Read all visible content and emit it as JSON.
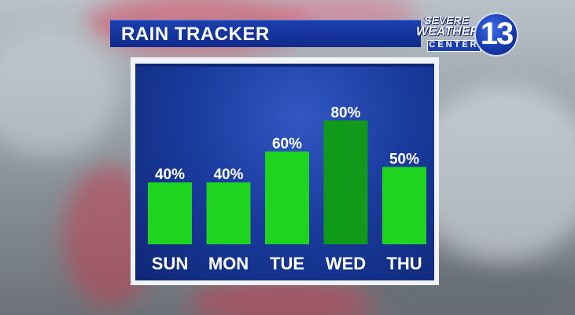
{
  "header": {
    "title": "RAIN TRACKER"
  },
  "logo": {
    "line1": "SEVERE",
    "line2": "WEATHER",
    "line3": "CENTER",
    "number": "13"
  },
  "colors": {
    "bar": "#1ed41e",
    "bar_highlight": "#0f9a1a",
    "panel_blue": "#1a3c9e",
    "title_blue": "#1c3fb0"
  },
  "chart_data": {
    "type": "bar",
    "categories": [
      "SUN",
      "MON",
      "TUE",
      "WED",
      "THU"
    ],
    "values": [
      40,
      40,
      60,
      80,
      50
    ],
    "value_labels": [
      "40%",
      "40%",
      "60%",
      "80%",
      "50%"
    ],
    "highlighted_category": "WED",
    "ylim": [
      0,
      100
    ],
    "grid": false,
    "legend": "none"
  }
}
